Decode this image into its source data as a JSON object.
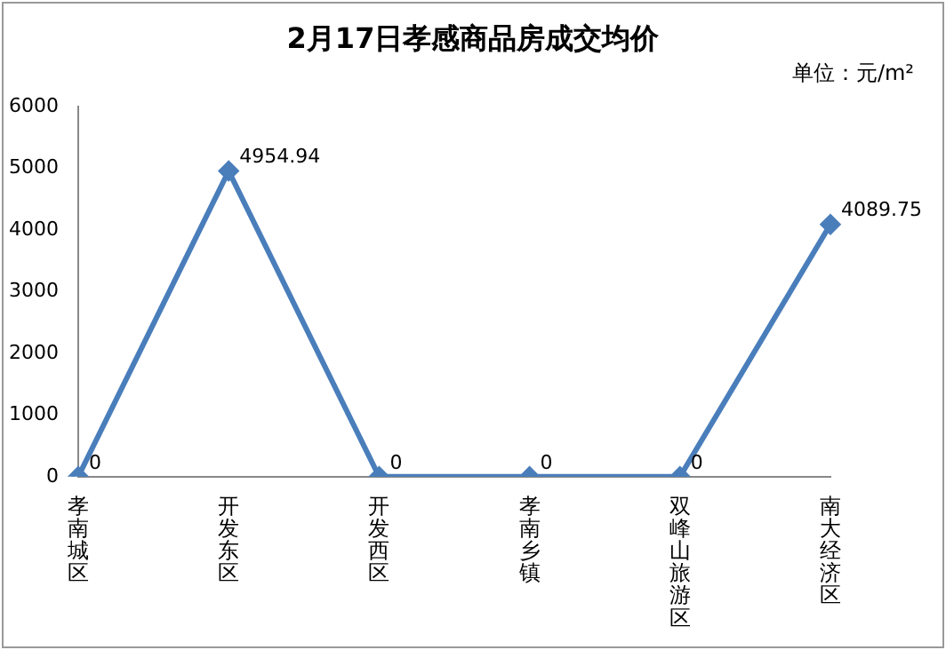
{
  "chart_data": {
    "type": "line",
    "title": "2月17日孝感商品房成交均价",
    "annotations": [
      "单位：元/m²"
    ],
    "categories": [
      "孝南城区",
      "开发东区",
      "开发西区",
      "孝南乡镇",
      "双峰山旅游区",
      "南大经济区"
    ],
    "series": [
      {
        "color": "#4a7ebb",
        "values": [
          0,
          4954.94,
          0,
          0,
          0,
          4089.75
        ]
      }
    ],
    "ylim": [
      0,
      6000
    ],
    "yticks": [
      0,
      1000,
      2000,
      3000,
      4000,
      5000,
      6000
    ],
    "grid": false,
    "legend": false,
    "marker": "diamond",
    "line_style": "solid",
    "data_labels": true
  }
}
